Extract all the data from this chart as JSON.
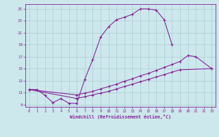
{
  "bg_color": "#cce8ec",
  "grid_color": "#aaccd4",
  "line_color": "#882299",
  "xlabel": "Windchill (Refroidissement éolien,°C)",
  "xlim_min": -0.5,
  "xlim_max": 23.5,
  "ylim_min": 8.6,
  "ylim_max": 25.8,
  "xticks": [
    0,
    1,
    2,
    3,
    4,
    5,
    6,
    7,
    8,
    9,
    10,
    11,
    12,
    13,
    14,
    15,
    16,
    17,
    18,
    19,
    20,
    21,
    22,
    23
  ],
  "yticks": [
    9,
    11,
    13,
    15,
    17,
    19,
    21,
    23,
    25
  ],
  "curve1_x": [
    0,
    1,
    2,
    3,
    4,
    5,
    6,
    7,
    8,
    9,
    10,
    11,
    12,
    13,
    14,
    15,
    16,
    17,
    18
  ],
  "curve1_y": [
    11.5,
    11.5,
    10.5,
    9.3,
    10.0,
    9.2,
    9.2,
    13.2,
    16.5,
    20.3,
    22.0,
    23.2,
    23.6,
    24.1,
    25.0,
    25.0,
    24.8,
    23.2,
    19.0
  ],
  "curve2_x": [
    0,
    6,
    7,
    8,
    9,
    10,
    11,
    12,
    13,
    14,
    15,
    16,
    17,
    18,
    19,
    20,
    21,
    23
  ],
  "curve2_y": [
    11.5,
    10.6,
    10.9,
    11.2,
    11.6,
    12.0,
    12.4,
    12.9,
    13.3,
    13.8,
    14.2,
    14.7,
    15.2,
    15.7,
    16.2,
    17.2,
    17.0,
    15.0
  ],
  "curve3_x": [
    0,
    6,
    7,
    8,
    9,
    10,
    11,
    12,
    13,
    14,
    15,
    16,
    17,
    18,
    19,
    23
  ],
  "curve3_y": [
    11.5,
    10.0,
    10.3,
    10.6,
    10.9,
    11.2,
    11.6,
    12.0,
    12.4,
    12.8,
    13.2,
    13.6,
    14.0,
    14.4,
    14.8,
    15.0
  ]
}
